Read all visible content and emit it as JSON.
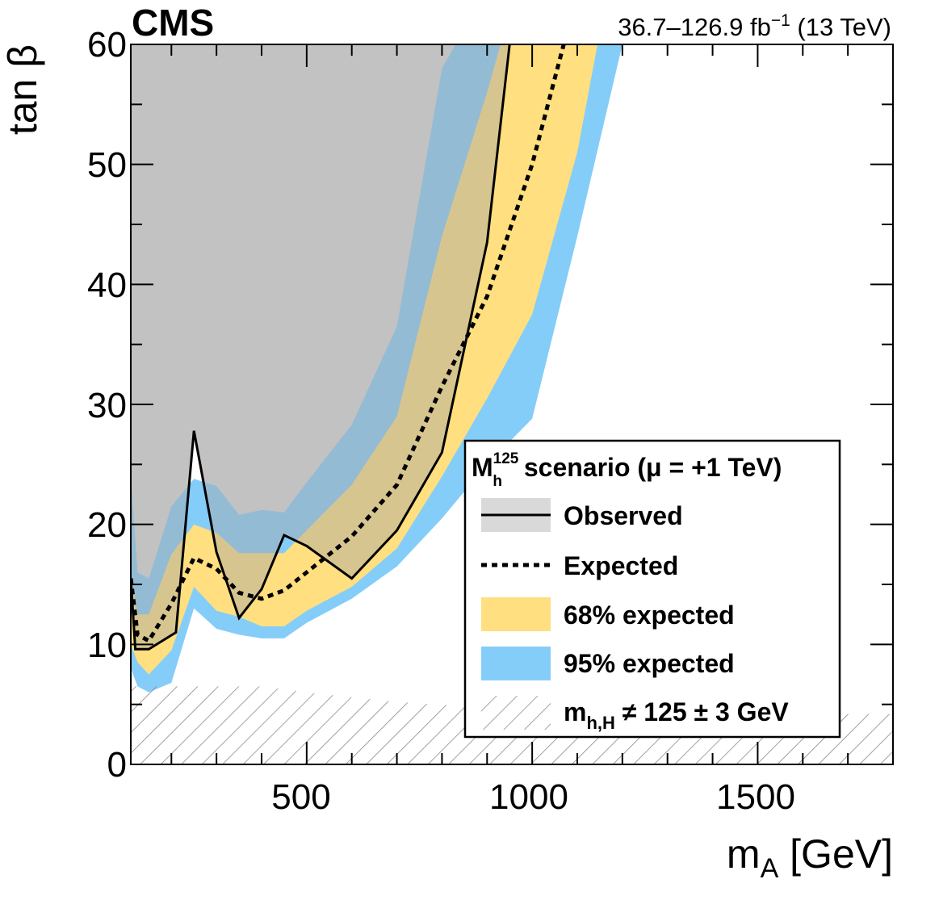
{
  "header": {
    "experiment": "CMS",
    "luminosity": "36.7–126.9 fb",
    "lumi_exponent": "−1",
    "energy": " (13 TeV)"
  },
  "chart_data": {
    "type": "area",
    "title": "",
    "xlabel": "m",
    "xlabel_sub": "A",
    "xlabel_unit": " [GeV]",
    "ylabel": "tan β",
    "xlim": [
      110,
      1800
    ],
    "ylim": [
      0,
      60
    ],
    "x_major_ticks": [
      500,
      1000,
      1500
    ],
    "x_tick_labels": [
      "500",
      "1000",
      "1500"
    ],
    "y_major_ticks": [
      0,
      10,
      20,
      30,
      40,
      50,
      60
    ],
    "y_tick_labels": [
      "0",
      "10",
      "20",
      "30",
      "40",
      "50",
      "60"
    ],
    "grid": false,
    "legend_position": "bottom-right",
    "series": [
      {
        "name": "Observed",
        "style": "solid-line",
        "color": "#000000",
        "fill": "#d9d9d9",
        "points": [
          [
            110,
            15.5
          ],
          [
            120,
            9.6
          ],
          [
            150,
            9.6
          ],
          [
            180,
            10.3
          ],
          [
            210,
            11
          ],
          [
            250,
            27.8
          ],
          [
            300,
            17.7
          ],
          [
            350,
            12.2
          ],
          [
            400,
            14.6
          ],
          [
            450,
            19.1
          ],
          [
            500,
            18.2
          ],
          [
            600,
            15.5
          ],
          [
            700,
            19.5
          ],
          [
            800,
            26
          ],
          [
            900,
            43.5
          ],
          [
            950,
            60
          ]
        ]
      },
      {
        "name": "Expected",
        "style": "dashed-line",
        "color": "#000000",
        "points": [
          [
            110,
            15.5
          ],
          [
            125,
            10.8
          ],
          [
            150,
            10.3
          ],
          [
            200,
            13.4
          ],
          [
            250,
            17.2
          ],
          [
            300,
            16.3
          ],
          [
            350,
            14.3
          ],
          [
            400,
            13.8
          ],
          [
            450,
            14.5
          ],
          [
            500,
            16
          ],
          [
            600,
            19
          ],
          [
            700,
            23.3
          ],
          [
            800,
            31.5
          ],
          [
            900,
            39
          ],
          [
            1000,
            50
          ],
          [
            1070,
            60
          ]
        ]
      },
      {
        "name": "68% expected",
        "style": "band",
        "color": "#ffdf7f",
        "upper": [
          [
            110,
            16
          ],
          [
            125,
            12.5
          ],
          [
            150,
            12.5
          ],
          [
            200,
            17.5
          ],
          [
            250,
            20
          ],
          [
            300,
            19.3
          ],
          [
            350,
            17.6
          ],
          [
            400,
            17.6
          ],
          [
            450,
            17.6
          ],
          [
            500,
            19.5
          ],
          [
            600,
            23.3
          ],
          [
            700,
            29
          ],
          [
            800,
            44
          ],
          [
            900,
            56
          ],
          [
            930,
            60
          ],
          [
            1145,
            60
          ]
        ],
        "lower": [
          [
            110,
            10
          ],
          [
            125,
            8.5
          ],
          [
            150,
            7.5
          ],
          [
            200,
            9.5
          ],
          [
            250,
            14.8
          ],
          [
            300,
            12.8
          ],
          [
            350,
            12.3
          ],
          [
            400,
            11.5
          ],
          [
            450,
            11.5
          ],
          [
            500,
            12.8
          ],
          [
            600,
            14.8
          ],
          [
            700,
            18
          ],
          [
            800,
            24
          ],
          [
            900,
            30.5
          ],
          [
            1000,
            37.5
          ],
          [
            1100,
            51
          ],
          [
            1145,
            60
          ]
        ]
      },
      {
        "name": "95% expected",
        "style": "band",
        "color": "#85cdf9",
        "upper": [
          [
            110,
            24
          ],
          [
            125,
            16
          ],
          [
            150,
            15.5
          ],
          [
            200,
            21.5
          ],
          [
            250,
            23.8
          ],
          [
            300,
            23.2
          ],
          [
            350,
            20.8
          ],
          [
            400,
            21.2
          ],
          [
            450,
            21
          ],
          [
            500,
            23.5
          ],
          [
            600,
            28.3
          ],
          [
            700,
            36.5
          ],
          [
            800,
            58
          ],
          [
            830,
            60
          ],
          [
            1200,
            60
          ]
        ],
        "lower": [
          [
            110,
            8
          ],
          [
            125,
            6.5
          ],
          [
            150,
            6
          ],
          [
            200,
            6.8
          ],
          [
            250,
            13
          ],
          [
            300,
            11.3
          ],
          [
            350,
            10.8
          ],
          [
            400,
            10.5
          ],
          [
            450,
            10.5
          ],
          [
            500,
            11.8
          ],
          [
            600,
            13.8
          ],
          [
            700,
            16.5
          ],
          [
            800,
            20.5
          ],
          [
            900,
            25
          ],
          [
            1000,
            28.8
          ],
          [
            1100,
            44
          ],
          [
            1200,
            60
          ]
        ]
      },
      {
        "name": "m",
        "name_sub": "h,H",
        "name_rest": " ≠ 125 ± 3 GeV",
        "style": "hatched",
        "color": "#888888",
        "upper": [
          [
            110,
            8
          ],
          [
            120,
            6.5
          ],
          [
            200,
            6.5
          ],
          [
            250,
            6.5
          ],
          [
            300,
            6.5
          ],
          [
            400,
            6.5
          ],
          [
            500,
            6.0
          ],
          [
            700,
            5.2
          ],
          [
            1000,
            4.5
          ],
          [
            1500,
            4.2
          ],
          [
            1800,
            4.2
          ]
        ]
      }
    ],
    "legend": {
      "header_main": "M",
      "header_sup": "125",
      "header_sub": "h",
      "header_rest": " scenario (μ = +1 TeV)"
    }
  }
}
